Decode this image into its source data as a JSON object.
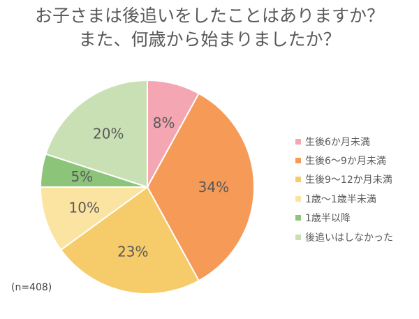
{
  "title": {
    "line1": "お子さまは後追いをしたことはありますか？",
    "line2": "また、何歳から始まりましたか？"
  },
  "chart_data": {
    "type": "pie",
    "categories": [
      "生後6か月未満",
      "生後6～9か月未満",
      "生後9～12か月未満",
      "1歳～1歳半未満",
      "1歳半以降",
      "後追いはしなかった"
    ],
    "values": [
      8,
      34,
      23,
      10,
      5,
      20
    ],
    "labels": [
      "8%",
      "34%",
      "23%",
      "10%",
      "5%",
      "20%"
    ],
    "colors": [
      "#F4A6B2",
      "#F59A57",
      "#F6CB6A",
      "#FBE3A2",
      "#8CC47A",
      "#C9E0B4"
    ],
    "legend_position": "right",
    "start_angle": "12 o'clock, clockwise"
  },
  "note": "(n=408)"
}
